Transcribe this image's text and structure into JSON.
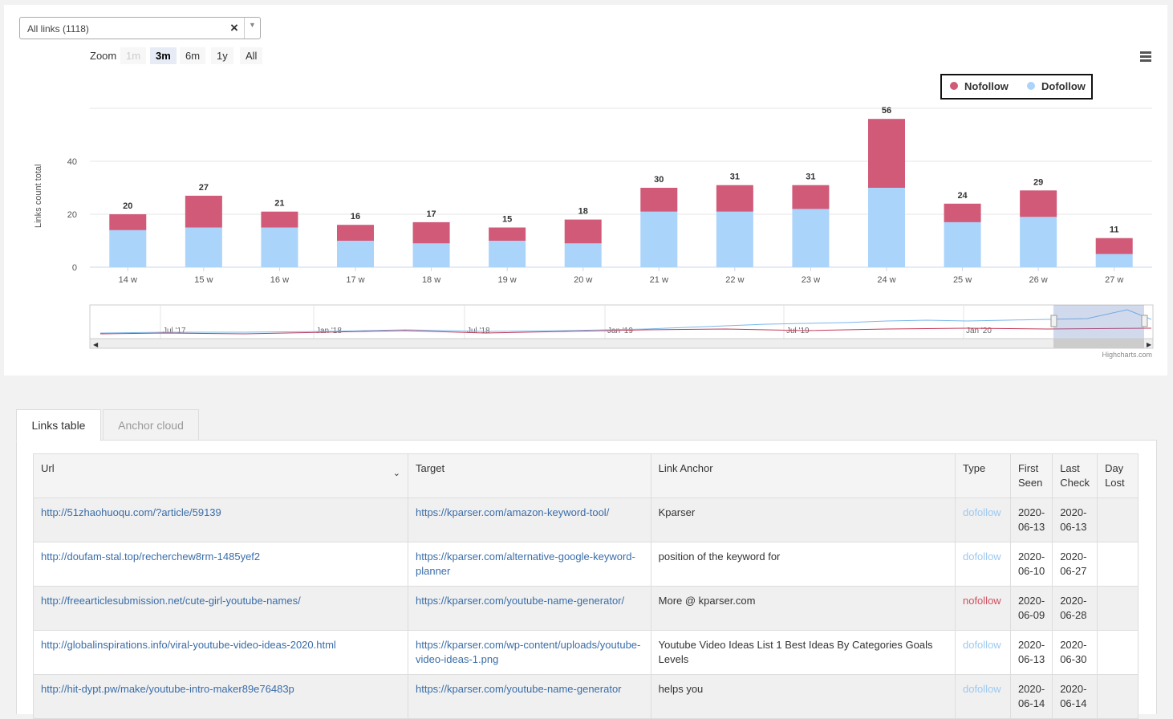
{
  "filter": {
    "value": "All links (1118)",
    "clear": "×",
    "arrow": "▼"
  },
  "zoom": {
    "label": "Zoom",
    "buttons": [
      "1m",
      "3m",
      "6m",
      "1y",
      "All"
    ],
    "active": "3m",
    "disabled": "1m"
  },
  "icons": {
    "menu": "hamburger-menu-icon"
  },
  "legend": {
    "nofollow": "Nofollow",
    "dofollow": "Dofollow"
  },
  "colors": {
    "nofollow": "#d05a78",
    "dofollow": "#aad4fa"
  },
  "chart_data": {
    "type": "bar",
    "stacked": true,
    "ylabel": "Links count total",
    "yticks": [
      0,
      20,
      40
    ],
    "ylim": [
      0,
      60
    ],
    "categories": [
      "14 w",
      "15 w",
      "16 w",
      "17 w",
      "18 w",
      "19 w",
      "20 w",
      "21 w",
      "22 w",
      "23 w",
      "24 w",
      "25 w",
      "26 w",
      "27 w"
    ],
    "totals": [
      20,
      27,
      21,
      16,
      17,
      15,
      18,
      30,
      31,
      31,
      56,
      24,
      29,
      11
    ],
    "series": [
      {
        "name": "Dofollow",
        "values": [
          14,
          15,
          15,
          10,
          9,
          10,
          9,
          21,
          21,
          22,
          30,
          17,
          19,
          5
        ]
      },
      {
        "name": "Nofollow",
        "values": [
          6,
          12,
          6,
          6,
          8,
          5,
          9,
          9,
          10,
          9,
          26,
          7,
          10,
          6
        ]
      }
    ],
    "legend_position": "top-right",
    "grid": true,
    "navigator_labels": [
      "Jul '17",
      "Jan '18",
      "Jul '18",
      "Jan '19",
      "Jul '19",
      "Jan '20"
    ],
    "credits": "Highcharts.com"
  },
  "tabs": [
    {
      "label": "Links table",
      "active": true
    },
    {
      "label": "Anchor cloud",
      "active": false
    }
  ],
  "table": {
    "headers": {
      "url": "Url",
      "target": "Target",
      "anchor": "Link Anchor",
      "type": "Type",
      "first_seen_1": "First",
      "first_seen_2": "Seen",
      "last_check_1": "Last",
      "last_check_2": "Check",
      "day_lost_1": "Day",
      "day_lost_2": "Lost"
    },
    "rows": [
      {
        "url": "http://51zhaohuoqu.com/?article/59139",
        "target": "https://kparser.com/amazon-keyword-tool/",
        "anchor": "Kparser",
        "type": "dofollow",
        "first1": "2020-",
        "first2": "06-13",
        "last1": "2020-",
        "last2": "06-13",
        "lost": ""
      },
      {
        "url": "http://doufam-stal.top/recherchew8rm-1485yef2",
        "target": "https://kparser.com/alternative-google-keyword-planner",
        "anchor": "position of the keyword for",
        "type": "dofollow",
        "first1": "2020-",
        "first2": "06-10",
        "last1": "2020-",
        "last2": "06-27",
        "lost": ""
      },
      {
        "url": "http://freearticlesubmission.net/cute-girl-youtube-names/",
        "target": "https://kparser.com/youtube-name-generator/",
        "anchor": "More @ kparser.com",
        "type": "nofollow",
        "first1": "2020-",
        "first2": "06-09",
        "last1": "2020-",
        "last2": "06-28",
        "lost": ""
      },
      {
        "url": "http://globalinspirations.info/viral-youtube-video-ideas-2020.html",
        "target": "https://kparser.com/wp-content/uploads/youtube-video-ideas-1.png",
        "anchor": "Youtube Video Ideas List 1 Best Ideas By Categories Goals Levels",
        "type": "dofollow",
        "first1": "2020-",
        "first2": "06-13",
        "last1": "2020-",
        "last2": "06-30",
        "lost": ""
      },
      {
        "url": "http://hit-dypt.pw/make/youtube-intro-maker89e76483p",
        "target": "https://kparser.com/youtube-name-generator",
        "anchor": "helps you",
        "type": "dofollow",
        "first1": "2020-",
        "first2": "06-14",
        "last1": "2020-",
        "last2": "06-14",
        "lost": ""
      }
    ]
  }
}
